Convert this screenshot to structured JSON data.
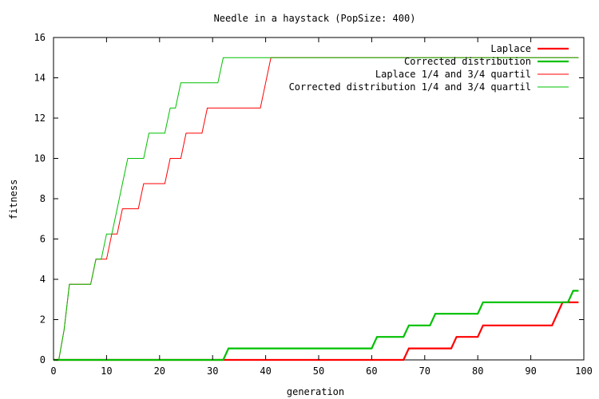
{
  "chart_data": {
    "type": "line",
    "title": "Needle in a haystack (PopSize: 400)",
    "xlabel": "generation",
    "ylabel": "fitness",
    "xlim": [
      0,
      100
    ],
    "ylim": [
      0,
      16
    ],
    "x_ticks": [
      0,
      10,
      20,
      30,
      40,
      50,
      60,
      70,
      80,
      90,
      100
    ],
    "y_ticks": [
      0,
      2,
      4,
      6,
      8,
      10,
      12,
      14,
      16
    ],
    "grid": false,
    "legend_position": "top-right",
    "series": [
      {
        "name": "Laplace",
        "color": "#ff0000",
        "thick": true,
        "points": [
          [
            0,
            0
          ],
          [
            66,
            0
          ],
          [
            67,
            0.57
          ],
          [
            75,
            0.57
          ],
          [
            76,
            1.14
          ],
          [
            80,
            1.14
          ],
          [
            81,
            1.71
          ],
          [
            94,
            1.71
          ],
          [
            96,
            2.86
          ],
          [
            99,
            2.86
          ]
        ]
      },
      {
        "name": "Corrected distribution",
        "color": "#00c000",
        "thick": true,
        "points": [
          [
            0,
            0
          ],
          [
            32,
            0
          ],
          [
            33,
            0.57
          ],
          [
            60,
            0.57
          ],
          [
            61,
            1.14
          ],
          [
            66,
            1.14
          ],
          [
            67,
            1.71
          ],
          [
            71,
            1.71
          ],
          [
            72,
            2.29
          ],
          [
            80,
            2.29
          ],
          [
            81,
            2.86
          ],
          [
            97,
            2.86
          ],
          [
            98,
            3.43
          ],
          [
            99,
            3.43
          ]
        ]
      },
      {
        "name": "Laplace 1/4 and 3/4 quartil",
        "color": "#ff0000",
        "thick": false,
        "points": [
          [
            0,
            0
          ],
          [
            1,
            0
          ],
          [
            2,
            1.5
          ],
          [
            3,
            3.75
          ],
          [
            7,
            3.75
          ],
          [
            8,
            5
          ],
          [
            10,
            5
          ],
          [
            11,
            6.25
          ],
          [
            12,
            6.25
          ],
          [
            13,
            7.5
          ],
          [
            16,
            7.5
          ],
          [
            17,
            8.75
          ],
          [
            21,
            8.75
          ],
          [
            22,
            10
          ],
          [
            24,
            10
          ],
          [
            25,
            11.25
          ],
          [
            28,
            11.25
          ],
          [
            29,
            12.5
          ],
          [
            39,
            12.5
          ],
          [
            40,
            13.75
          ],
          [
            41,
            15
          ],
          [
            99,
            15
          ]
        ]
      },
      {
        "name": "Corrected distribution 1/4 and 3/4 quartil",
        "color": "#00c000",
        "thick": false,
        "points": [
          [
            0,
            0
          ],
          [
            1,
            0
          ],
          [
            2,
            1.5
          ],
          [
            3,
            3.75
          ],
          [
            7,
            3.75
          ],
          [
            8,
            5
          ],
          [
            9,
            5
          ],
          [
            10,
            6.25
          ],
          [
            11,
            6.25
          ],
          [
            12,
            7.5
          ],
          [
            13,
            8.75
          ],
          [
            14,
            10
          ],
          [
            17,
            10
          ],
          [
            18,
            11.25
          ],
          [
            21,
            11.25
          ],
          [
            22,
            12.5
          ],
          [
            23,
            12.5
          ],
          [
            24,
            13.75
          ],
          [
            31,
            13.75
          ],
          [
            32,
            15
          ],
          [
            99,
            15
          ]
        ]
      }
    ]
  }
}
